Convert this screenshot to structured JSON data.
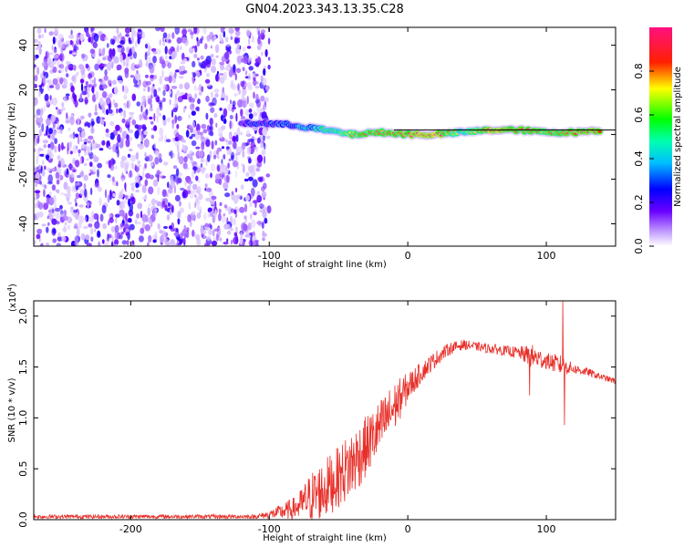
{
  "chart_data": [
    {
      "type": "heatmap",
      "title": "GN04.2023.343.13.35.C28",
      "xlabel": "Height of straight line (km)",
      "ylabel": "Frequency (Hz)",
      "xlim": [
        -270,
        150
      ],
      "ylim": [
        -50,
        48
      ],
      "xticks": [
        -200,
        -100,
        0,
        100
      ],
      "xtick_labels": [
        "-200",
        "-100",
        "0",
        "100"
      ],
      "yticks": [
        -40,
        -20,
        0,
        20,
        40
      ],
      "ytick_labels": [
        "-40",
        "-20",
        "0",
        "20",
        "40"
      ],
      "colorbar": {
        "label": "Normalized spectral amplitude",
        "range": [
          0,
          1
        ],
        "ticks": [
          0.0,
          0.2,
          0.4,
          0.6,
          0.8
        ],
        "tick_labels": [
          "0.0",
          "0.2",
          "0.4",
          "0.6",
          "0.8"
        ]
      },
      "colormap": [
        "#ffffff",
        "#6a00ff",
        "#0000ff",
        "#00ffff",
        "#00ff00",
        "#ffff00",
        "#ff0000",
        "#ff0080"
      ],
      "noise_region_x": [
        -270,
        -100
      ],
      "signal_track": [
        {
          "x": -120,
          "f": 5,
          "amp": 0.25
        },
        {
          "x": -100,
          "f": 5,
          "amp": 0.3
        },
        {
          "x": -80,
          "f": 4,
          "amp": 0.4
        },
        {
          "x": -60,
          "f": 2,
          "amp": 0.55
        },
        {
          "x": -40,
          "f": 0,
          "amp": 0.75
        },
        {
          "x": -20,
          "f": 1,
          "amp": 0.8
        },
        {
          "x": 0,
          "f": 0,
          "amp": 0.9
        },
        {
          "x": 20,
          "f": 0,
          "amp": 0.95
        },
        {
          "x": 40,
          "f": 1,
          "amp": 0.6
        },
        {
          "x": 60,
          "f": 2,
          "amp": 0.95
        },
        {
          "x": 80,
          "f": 2,
          "amp": 0.85
        },
        {
          "x": 100,
          "f": 1,
          "amp": 0.8
        },
        {
          "x": 120,
          "f": 1,
          "amp": 0.85
        },
        {
          "x": 140,
          "f": 2,
          "amp": 0.9
        }
      ],
      "center_line_f": 2,
      "center_line_x": [
        -10,
        150
      ]
    },
    {
      "type": "line",
      "title": "",
      "xlabel": "Height of straight line (km)",
      "ylabel": "SNR (10 * v/v)",
      "scale_label": "(x10",
      "scale_exponent": "4",
      "scale_close": ")",
      "xlim": [
        -270,
        150
      ],
      "ylim": [
        0,
        2.15
      ],
      "xticks": [
        -200,
        -100,
        0,
        100
      ],
      "xtick_labels": [
        "-200",
        "-100",
        "0",
        "100"
      ],
      "yticks": [
        0,
        0.5,
        1.0,
        1.5,
        2.0
      ],
      "ytick_labels": [
        "0.0",
        "0.5",
        "1.0",
        "1.5",
        "2.0"
      ],
      "color": "#e8302a",
      "series": [
        {
          "x": [
            -270,
            -200,
            -150,
            -110,
            -100,
            -90,
            -80,
            -70,
            -60,
            -50,
            -40,
            -30,
            -20,
            -10,
            0,
            10,
            20,
            30,
            40,
            50,
            60,
            70,
            80,
            90,
            100,
            110,
            120,
            130,
            140,
            150
          ],
          "y": [
            0.03,
            0.03,
            0.03,
            0.03,
            0.05,
            0.08,
            0.12,
            0.22,
            0.3,
            0.42,
            0.55,
            0.72,
            0.9,
            1.1,
            1.3,
            1.45,
            1.58,
            1.68,
            1.72,
            1.7,
            1.68,
            1.66,
            1.64,
            1.6,
            1.56,
            1.52,
            1.48,
            1.45,
            1.4,
            1.36
          ],
          "spread": [
            0.02,
            0.02,
            0.02,
            0.02,
            0.04,
            0.08,
            0.12,
            0.25,
            0.3,
            0.3,
            0.35,
            0.3,
            0.28,
            0.25,
            0.15,
            0.1,
            0.08,
            0.06,
            0.05,
            0.04,
            0.05,
            0.05,
            0.06,
            0.12,
            0.08,
            0.1,
            0.05,
            0.04,
            0.03,
            0.03
          ]
        }
      ],
      "spikes": [
        {
          "x": 88,
          "y": 1.22
        },
        {
          "x": 112,
          "y": 2.15
        },
        {
          "x": 113,
          "y": 0.93
        }
      ]
    }
  ]
}
